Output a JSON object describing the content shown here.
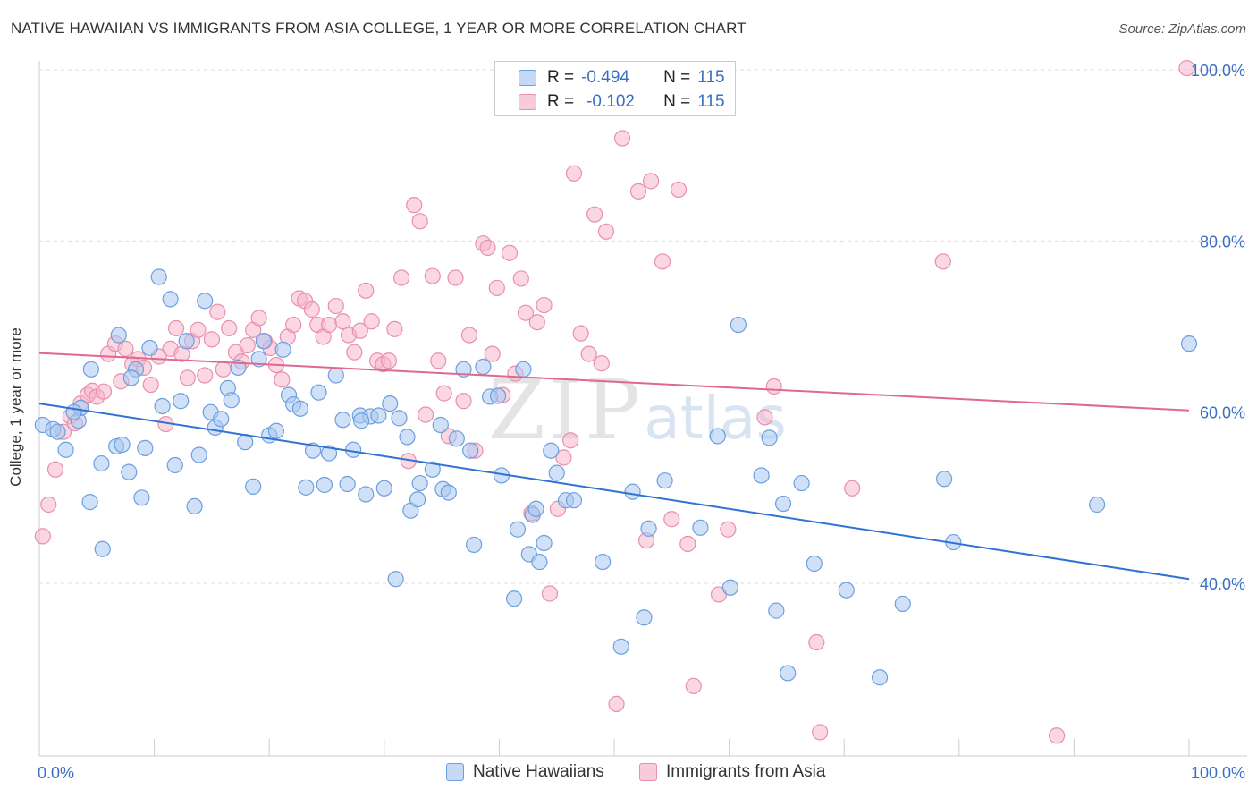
{
  "header": {
    "title": "NATIVE HAWAIIAN VS IMMIGRANTS FROM ASIA COLLEGE, 1 YEAR OR MORE CORRELATION CHART",
    "source": "Source: ZipAtlas.com"
  },
  "watermark": {
    "zip": "ZIP",
    "atlas": "atlas"
  },
  "legend": {
    "rows": [
      {
        "r_label": "R =",
        "r_value": "-0.494",
        "n_label": "N =",
        "n_value": "115"
      },
      {
        "r_label": "R =",
        "r_value": "-0.102",
        "n_label": "N =",
        "n_value": "115"
      }
    ]
  },
  "bottom_legend": {
    "series_a": "Native Hawaiians",
    "series_b": "Immigrants from Asia"
  },
  "colors": {
    "blue_fill": "#a9c8f0",
    "blue_stroke": "#6c9fe0",
    "blue_line": "#2f72d4",
    "pink_fill": "#f5b7cb",
    "pink_stroke": "#e98fae",
    "pink_line": "#e0688f",
    "axis_label": "#3a6fc6",
    "grid": "#dddddd"
  },
  "chart_data": {
    "type": "scatter",
    "title": "NATIVE HAWAIIAN VS IMMIGRANTS FROM ASIA COLLEGE, 1 YEAR OR MORE CORRELATION CHART",
    "xlabel": "",
    "ylabel": "College, 1 year or more",
    "xlim": [
      0,
      100
    ],
    "ylim": [
      20,
      102
    ],
    "x_tick_labels": [
      "0.0%",
      "100.0%"
    ],
    "y_ticks": [
      40,
      60,
      80,
      100
    ],
    "y_tick_labels": [
      "40.0%",
      "60.0%",
      "80.0%",
      "100.0%"
    ],
    "grid": true,
    "legend_position": "top-center",
    "series": [
      {
        "name": "Native Hawaiians",
        "r": -0.494,
        "n": 115,
        "trend": {
          "x": [
            0,
            100
          ],
          "y": [
            61.0,
            40.5
          ]
        },
        "points": [
          [
            0.3,
            58.5
          ],
          [
            1.2,
            58.0
          ],
          [
            1.6,
            57.7
          ],
          [
            2.3,
            55.6
          ],
          [
            3.4,
            59.0
          ],
          [
            3.6,
            60.5
          ],
          [
            4.4,
            49.5
          ],
          [
            4.5,
            65.0
          ],
          [
            5.4,
            54.0
          ],
          [
            5.5,
            44.0
          ],
          [
            6.7,
            56.0
          ],
          [
            6.9,
            69.0
          ],
          [
            7.2,
            56.2
          ],
          [
            7.8,
            53.0
          ],
          [
            8.4,
            65.0
          ],
          [
            8.9,
            50.0
          ],
          [
            9.2,
            55.8
          ],
          [
            9.6,
            67.5
          ],
          [
            10.4,
            75.8
          ],
          [
            10.7,
            60.7
          ],
          [
            11.4,
            73.2
          ],
          [
            11.8,
            53.8
          ],
          [
            12.3,
            61.3
          ],
          [
            12.8,
            68.3
          ],
          [
            13.5,
            49.0
          ],
          [
            13.9,
            55.0
          ],
          [
            14.4,
            73.0
          ],
          [
            14.9,
            60.0
          ],
          [
            15.3,
            58.2
          ],
          [
            15.8,
            59.2
          ],
          [
            16.4,
            62.8
          ],
          [
            16.7,
            61.4
          ],
          [
            17.3,
            65.2
          ],
          [
            17.9,
            56.5
          ],
          [
            18.6,
            51.3
          ],
          [
            19.1,
            66.2
          ],
          [
            19.5,
            68.3
          ],
          [
            20.0,
            57.3
          ],
          [
            20.6,
            57.8
          ],
          [
            21.2,
            67.3
          ],
          [
            21.7,
            62.0
          ],
          [
            22.1,
            60.9
          ],
          [
            22.7,
            60.4
          ],
          [
            23.2,
            51.2
          ],
          [
            23.8,
            55.5
          ],
          [
            24.3,
            62.3
          ],
          [
            24.8,
            51.5
          ],
          [
            25.2,
            55.2
          ],
          [
            25.8,
            64.3
          ],
          [
            26.4,
            59.1
          ],
          [
            26.8,
            51.6
          ],
          [
            27.3,
            55.6
          ],
          [
            27.9,
            59.6
          ],
          [
            28.4,
            50.4
          ],
          [
            28.8,
            59.5
          ],
          [
            29.5,
            59.6
          ],
          [
            30.0,
            51.1
          ],
          [
            30.5,
            61.0
          ],
          [
            31.0,
            40.5
          ],
          [
            31.3,
            59.3
          ],
          [
            32.0,
            57.1
          ],
          [
            32.3,
            48.5
          ],
          [
            32.9,
            49.8
          ],
          [
            33.1,
            51.7
          ],
          [
            34.2,
            53.3
          ],
          [
            34.9,
            58.5
          ],
          [
            35.1,
            51.0
          ],
          [
            35.6,
            50.6
          ],
          [
            36.3,
            56.9
          ],
          [
            36.9,
            65.0
          ],
          [
            37.5,
            55.5
          ],
          [
            37.8,
            44.5
          ],
          [
            38.6,
            65.3
          ],
          [
            39.2,
            61.8
          ],
          [
            39.9,
            61.9
          ],
          [
            40.2,
            52.6
          ],
          [
            41.3,
            38.2
          ],
          [
            41.6,
            46.3
          ],
          [
            42.1,
            65.0
          ],
          [
            42.6,
            43.4
          ],
          [
            42.9,
            48.0
          ],
          [
            43.2,
            48.7
          ],
          [
            43.5,
            42.5
          ],
          [
            43.9,
            44.7
          ],
          [
            44.5,
            55.5
          ],
          [
            45.0,
            52.9
          ],
          [
            45.8,
            49.7
          ],
          [
            46.5,
            49.7
          ],
          [
            49.0,
            42.5
          ],
          [
            50.6,
            32.6
          ],
          [
            51.6,
            50.7
          ],
          [
            52.6,
            36.0
          ],
          [
            53.0,
            46.4
          ],
          [
            54.4,
            52.0
          ],
          [
            57.5,
            46.5
          ],
          [
            59.0,
            57.2
          ],
          [
            60.1,
            39.5
          ],
          [
            60.8,
            70.2
          ],
          [
            62.8,
            52.6
          ],
          [
            63.5,
            57.0
          ],
          [
            64.1,
            36.8
          ],
          [
            64.7,
            49.3
          ],
          [
            65.1,
            29.5
          ],
          [
            66.3,
            51.7
          ],
          [
            67.4,
            42.3
          ],
          [
            70.2,
            39.2
          ],
          [
            73.1,
            29.0
          ],
          [
            75.1,
            37.6
          ],
          [
            78.7,
            52.2
          ],
          [
            79.5,
            44.8
          ],
          [
            92.0,
            49.2
          ],
          [
            100.0,
            68.0
          ],
          [
            3.0,
            60.0
          ],
          [
            8.0,
            64.0
          ],
          [
            28.0,
            59.0
          ]
        ]
      },
      {
        "name": "Immigrants from Asia",
        "r": -0.102,
        "n": 115,
        "trend": {
          "x": [
            0,
            100
          ],
          "y": [
            66.9,
            60.2
          ]
        },
        "points": [
          [
            0.3,
            45.5
          ],
          [
            0.8,
            49.2
          ],
          [
            1.4,
            53.3
          ],
          [
            2.1,
            57.7
          ],
          [
            2.7,
            59.5
          ],
          [
            3.1,
            58.7
          ],
          [
            3.6,
            61.0
          ],
          [
            4.2,
            62.0
          ],
          [
            4.6,
            62.5
          ],
          [
            5.0,
            61.8
          ],
          [
            5.6,
            62.4
          ],
          [
            6.0,
            66.8
          ],
          [
            6.6,
            68.0
          ],
          [
            7.1,
            63.6
          ],
          [
            7.5,
            67.4
          ],
          [
            8.1,
            65.6
          ],
          [
            8.6,
            66.2
          ],
          [
            9.1,
            65.2
          ],
          [
            9.7,
            63.2
          ],
          [
            10.4,
            66.5
          ],
          [
            11.0,
            58.6
          ],
          [
            11.4,
            67.4
          ],
          [
            11.9,
            69.8
          ],
          [
            12.4,
            66.8
          ],
          [
            12.9,
            64.0
          ],
          [
            13.3,
            68.3
          ],
          [
            13.8,
            69.6
          ],
          [
            14.4,
            64.3
          ],
          [
            15.0,
            68.5
          ],
          [
            15.5,
            71.7
          ],
          [
            16.0,
            65.0
          ],
          [
            16.5,
            69.8
          ],
          [
            17.1,
            67.0
          ],
          [
            17.6,
            65.9
          ],
          [
            18.1,
            67.8
          ],
          [
            18.6,
            69.6
          ],
          [
            19.1,
            71.0
          ],
          [
            19.6,
            68.3
          ],
          [
            20.1,
            67.5
          ],
          [
            20.6,
            65.5
          ],
          [
            21.1,
            63.8
          ],
          [
            21.6,
            68.8
          ],
          [
            22.1,
            70.2
          ],
          [
            22.6,
            73.3
          ],
          [
            23.1,
            73.0
          ],
          [
            23.7,
            72.0
          ],
          [
            24.2,
            70.2
          ],
          [
            24.7,
            68.8
          ],
          [
            25.2,
            70.2
          ],
          [
            25.8,
            72.4
          ],
          [
            26.4,
            70.6
          ],
          [
            26.9,
            69.0
          ],
          [
            27.4,
            67.0
          ],
          [
            27.9,
            69.5
          ],
          [
            28.4,
            74.2
          ],
          [
            28.9,
            70.6
          ],
          [
            29.4,
            66.0
          ],
          [
            29.9,
            65.6
          ],
          [
            30.4,
            66.0
          ],
          [
            30.9,
            69.7
          ],
          [
            31.5,
            75.7
          ],
          [
            32.1,
            54.3
          ],
          [
            32.6,
            84.2
          ],
          [
            33.1,
            82.3
          ],
          [
            33.6,
            59.7
          ],
          [
            34.2,
            75.9
          ],
          [
            34.7,
            66.0
          ],
          [
            35.2,
            62.2
          ],
          [
            35.6,
            57.2
          ],
          [
            36.2,
            75.7
          ],
          [
            36.9,
            61.3
          ],
          [
            37.4,
            69.0
          ],
          [
            37.9,
            55.5
          ],
          [
            38.6,
            79.7
          ],
          [
            39.0,
            79.2
          ],
          [
            39.4,
            66.8
          ],
          [
            39.8,
            74.5
          ],
          [
            40.3,
            62.0
          ],
          [
            40.9,
            78.6
          ],
          [
            41.4,
            64.5
          ],
          [
            41.9,
            75.6
          ],
          [
            42.3,
            71.6
          ],
          [
            42.8,
            48.2
          ],
          [
            43.3,
            70.5
          ],
          [
            43.9,
            72.5
          ],
          [
            44.4,
            38.8
          ],
          [
            45.1,
            48.7
          ],
          [
            45.6,
            54.7
          ],
          [
            46.2,
            56.7
          ],
          [
            46.5,
            87.9
          ],
          [
            47.1,
            69.2
          ],
          [
            47.8,
            66.8
          ],
          [
            48.3,
            83.1
          ],
          [
            48.9,
            65.7
          ],
          [
            49.3,
            81.1
          ],
          [
            50.2,
            25.9
          ],
          [
            50.7,
            92.0
          ],
          [
            52.1,
            85.8
          ],
          [
            52.8,
            45.0
          ],
          [
            53.2,
            87.0
          ],
          [
            54.2,
            77.6
          ],
          [
            55.0,
            47.5
          ],
          [
            55.6,
            86.0
          ],
          [
            56.4,
            44.6
          ],
          [
            56.9,
            28.0
          ],
          [
            59.1,
            38.7
          ],
          [
            59.9,
            46.3
          ],
          [
            63.1,
            59.4
          ],
          [
            63.9,
            63.0
          ],
          [
            67.6,
            33.1
          ],
          [
            67.9,
            22.6
          ],
          [
            70.7,
            51.1
          ],
          [
            78.6,
            77.6
          ],
          [
            88.5,
            22.2
          ],
          [
            99.8,
            100.2
          ]
        ]
      }
    ]
  }
}
